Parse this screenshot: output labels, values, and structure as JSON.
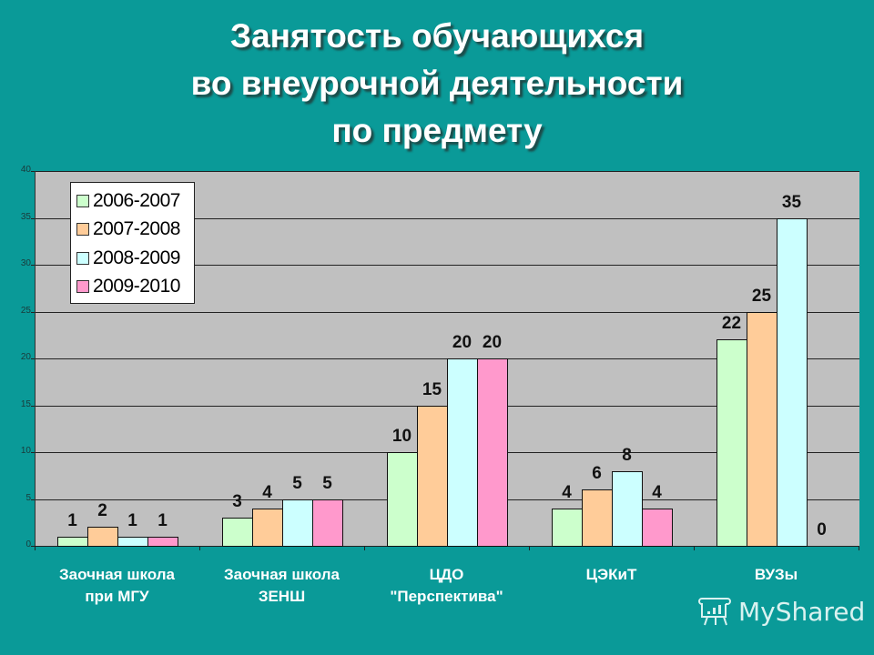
{
  "title": {
    "line1": "Занятость обучающихся",
    "line2": "во внеурочной деятельности",
    "line3": "по предмету"
  },
  "legend": [
    {
      "label": "2006-2007",
      "color": "#ccffcc"
    },
    {
      "label": "2007-2008",
      "color": "#ffcc99"
    },
    {
      "label": "2008-2009",
      "color": "#ccffff"
    },
    {
      "label": "2009-2010",
      "color": "#ff99cc"
    }
  ],
  "y_ticks": [
    "0",
    "5",
    "10",
    "15",
    "20",
    "25",
    "30",
    "35",
    "40"
  ],
  "categories": [
    {
      "line1": "Заочная школа",
      "line2": "при МГУ"
    },
    {
      "line1": "Заочная школа",
      "line2": "ЗЕНШ"
    },
    {
      "line1": "ЦДО",
      "line2": "\"Перспектива\""
    },
    {
      "line1": "ЦЭКиТ",
      "line2": ""
    },
    {
      "line1": "ВУЗы",
      "line2": ""
    }
  ],
  "watermark": "MyShared",
  "chart_data": {
    "type": "bar",
    "title": "Занятость обучающихся во внеурочной деятельности по предмету",
    "categories": [
      "Заочная школа при МГУ",
      "Заочная школа ЗЕНШ",
      "ЦДО \"Перспектива\"",
      "ЦЭКиТ",
      "ВУЗы"
    ],
    "series": [
      {
        "name": "2006-2007",
        "color": "#ccffcc",
        "values": [
          1,
          3,
          10,
          4,
          22
        ]
      },
      {
        "name": "2007-2008",
        "color": "#ffcc99",
        "values": [
          2,
          4,
          15,
          6,
          25
        ]
      },
      {
        "name": "2008-2009",
        "color": "#ccffff",
        "values": [
          1,
          5,
          20,
          8,
          35
        ]
      },
      {
        "name": "2009-2010",
        "color": "#ff99cc",
        "values": [
          1,
          5,
          20,
          4,
          0
        ]
      }
    ],
    "xlabel": "",
    "ylabel": "",
    "ylim": [
      0,
      40
    ],
    "yticks": [
      0,
      5,
      10,
      15,
      20,
      25,
      30,
      35,
      40
    ],
    "grid": true,
    "legend_position": "upper-left-inside",
    "data_labels": true
  }
}
